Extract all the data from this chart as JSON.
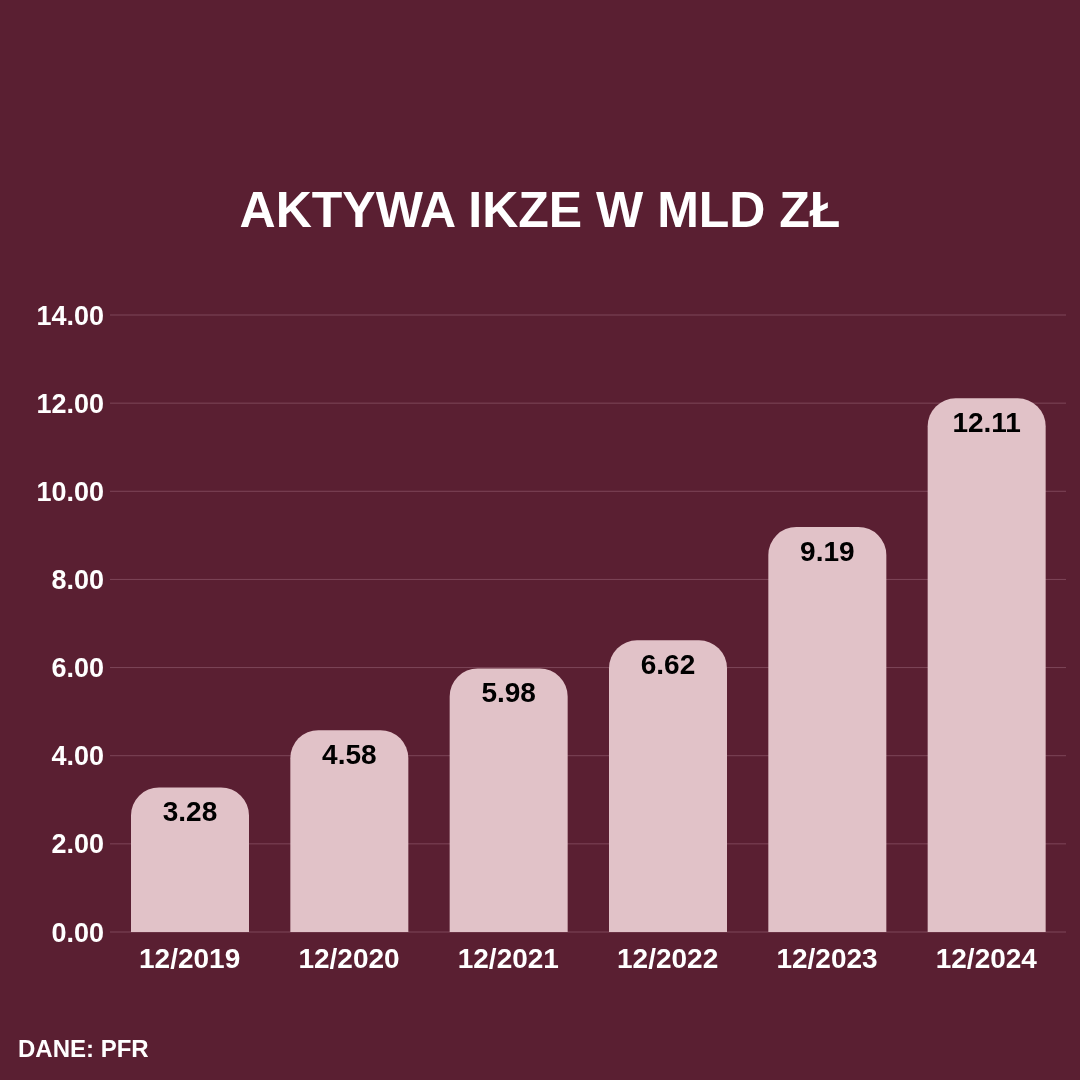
{
  "chart_data": {
    "type": "bar",
    "title": "AKTYWA IKZE W MLD ZŁ",
    "categories": [
      "12/2019",
      "12/2020",
      "12/2021",
      "12/2022",
      "12/2023",
      "12/2024"
    ],
    "values": [
      3.28,
      4.58,
      5.98,
      6.62,
      9.19,
      12.11
    ],
    "color": "#e1c2c8",
    "ylim": [
      0,
      14
    ],
    "yticks": [
      {
        "value": 0,
        "label": "0.00"
      },
      {
        "value": 2,
        "label": "2.00"
      },
      {
        "value": 4,
        "label": "4.00"
      },
      {
        "value": 6,
        "label": "6.00"
      },
      {
        "value": 8,
        "label": "8.00"
      },
      {
        "value": 10,
        "label": "10.00"
      },
      {
        "value": 12,
        "label": "12.00"
      },
      {
        "value": 14,
        "label": "14.00"
      }
    ],
    "grid": "y",
    "data_labels": true,
    "annotations": [
      "DANE: PFR"
    ]
  }
}
